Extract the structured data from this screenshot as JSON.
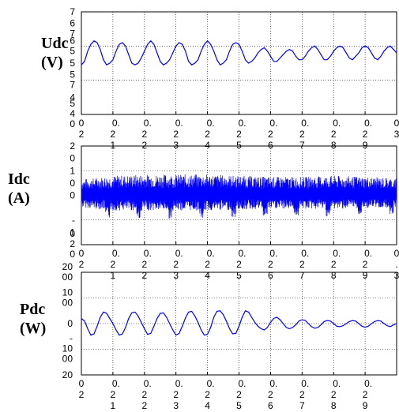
{
  "chart_data": [
    {
      "type": "line",
      "ylabel_lines": [
        "Udc",
        "(V)"
      ],
      "xlim": [
        0.2,
        0.3
      ],
      "ylim": [
        4,
        7
      ],
      "grid": true,
      "series_color": "#0000ff",
      "ytick_labels": [
        {
          "value": 7,
          "lines": [
            "7"
          ]
        },
        {
          "value": 6.5,
          "lines": [
            "6",
            "7"
          ]
        },
        {
          "value": 6,
          "lines": [
            "6",
            "5"
          ]
        },
        {
          "value": 5.5,
          "lines": [
            "5"
          ]
        },
        {
          "value": 5,
          "lines": [
            "5",
            "7"
          ]
        },
        {
          "value": 4.5,
          "lines": [
            "4"
          ]
        },
        {
          "value": 4,
          "lines": [
            "5",
            "4",
            "0"
          ]
        }
      ],
      "xtick_labels": [
        {
          "value": 0.2,
          "lines": [
            "0",
            "",
            "2"
          ]
        },
        {
          "value": 0.21,
          "lines": [
            "0.",
            "2",
            "1"
          ]
        },
        {
          "value": 0.22,
          "lines": [
            "0.",
            "2",
            "2"
          ]
        },
        {
          "value": 0.23,
          "lines": [
            "0.",
            "2",
            "3"
          ]
        },
        {
          "value": 0.24,
          "lines": [
            "0.",
            "2",
            "4"
          ]
        },
        {
          "value": 0.25,
          "lines": [
            "0.",
            "2",
            "5"
          ]
        },
        {
          "value": 0.26,
          "lines": [
            "0.",
            "2",
            "6"
          ]
        },
        {
          "value": 0.27,
          "lines": [
            "0.",
            "2",
            "7"
          ]
        },
        {
          "value": 0.28,
          "lines": [
            "0.",
            "2",
            "8"
          ]
        },
        {
          "value": 0.29,
          "lines": [
            "0.",
            "2",
            "9"
          ]
        },
        {
          "value": 0.3,
          "lines": [
            "0",
            "",
            "3"
          ]
        }
      ],
      "x": [
        0.2,
        0.201,
        0.202,
        0.203,
        0.204,
        0.205,
        0.206,
        0.207,
        0.208,
        0.209,
        0.21,
        0.211,
        0.212,
        0.213,
        0.214,
        0.215,
        0.216,
        0.217,
        0.218,
        0.219,
        0.22,
        0.221,
        0.222,
        0.223,
        0.224,
        0.225,
        0.226,
        0.227,
        0.228,
        0.229,
        0.23,
        0.231,
        0.232,
        0.233,
        0.234,
        0.235,
        0.236,
        0.237,
        0.238,
        0.239,
        0.24,
        0.241,
        0.242,
        0.243,
        0.244,
        0.245,
        0.246,
        0.247,
        0.248,
        0.249,
        0.25,
        0.251,
        0.252,
        0.253,
        0.254,
        0.255,
        0.256,
        0.257,
        0.258,
        0.259,
        0.26,
        0.261,
        0.262,
        0.263,
        0.264,
        0.265,
        0.266,
        0.267,
        0.268,
        0.269,
        0.27,
        0.271,
        0.272,
        0.273,
        0.274,
        0.275,
        0.276,
        0.277,
        0.278,
        0.279,
        0.28,
        0.281,
        0.282,
        0.283,
        0.284,
        0.285,
        0.286,
        0.287,
        0.288,
        0.289,
        0.29,
        0.291,
        0.292,
        0.293,
        0.294,
        0.295,
        0.296,
        0.297,
        0.298,
        0.299,
        0.3
      ],
      "y": [
        5.45,
        5.55,
        5.85,
        6.05,
        6.15,
        6.1,
        5.9,
        5.6,
        5.45,
        5.5,
        5.6,
        5.85,
        6.05,
        6.1,
        6.0,
        5.75,
        5.5,
        5.45,
        5.5,
        5.65,
        5.85,
        6.05,
        6.15,
        6.05,
        5.8,
        5.55,
        5.45,
        5.5,
        5.6,
        5.8,
        6.0,
        6.1,
        6.05,
        5.85,
        5.55,
        5.45,
        5.5,
        5.6,
        5.85,
        6.05,
        6.15,
        6.05,
        5.85,
        5.6,
        5.45,
        5.5,
        5.6,
        5.85,
        6.05,
        6.1,
        6.05,
        5.85,
        5.6,
        5.5,
        5.55,
        5.65,
        5.8,
        5.9,
        5.95,
        5.85,
        5.7,
        5.55,
        5.55,
        5.65,
        5.75,
        5.85,
        5.9,
        5.85,
        5.7,
        5.6,
        5.6,
        5.7,
        5.85,
        5.95,
        6.0,
        5.9,
        5.75,
        5.6,
        5.6,
        5.7,
        5.85,
        5.95,
        6.0,
        5.95,
        5.8,
        5.65,
        5.6,
        5.7,
        5.8,
        5.95,
        6.0,
        5.95,
        5.8,
        5.65,
        5.6,
        5.7,
        5.85,
        5.95,
        6.0,
        5.9,
        5.8
      ]
    },
    {
      "type": "line",
      "ylabel_lines": [
        "Idc",
        "(A)"
      ],
      "xlim": [
        0.2,
        0.3
      ],
      "ylim": [
        -20,
        20
      ],
      "grid": true,
      "series_color": "#0000ff",
      "ytick_labels": [
        {
          "value": 20,
          "lines": [
            "2"
          ]
        },
        {
          "value": 15,
          "lines": [
            "0"
          ]
        },
        {
          "value": 10,
          "lines": [
            "1"
          ]
        },
        {
          "value": 5,
          "lines": [
            "0"
          ]
        },
        {
          "value": 0,
          "lines": [
            "0"
          ]
        },
        {
          "value": -5,
          "lines": [
            ""
          ]
        },
        {
          "value": -10,
          "lines": [
            "-"
          ]
        },
        {
          "value": -15,
          "lines": [
            "1"
          ]
        },
        {
          "value": -20,
          "lines": [
            "0",
            "2",
            "0"
          ]
        }
      ],
      "xtick_labels": [
        {
          "value": 0.2,
          "lines": [
            "0",
            "",
            "2"
          ]
        },
        {
          "value": 0.21,
          "lines": [
            "0.",
            "2",
            "1"
          ]
        },
        {
          "value": 0.22,
          "lines": [
            "0.",
            "2",
            "2"
          ]
        },
        {
          "value": 0.23,
          "lines": [
            "0.",
            "2",
            "3"
          ]
        },
        {
          "value": 0.24,
          "lines": [
            "0.",
            "2",
            "4"
          ]
        },
        {
          "value": 0.25,
          "lines": [
            "0.",
            "2",
            "5"
          ]
        },
        {
          "value": 0.26,
          "lines": [
            "0.",
            "2",
            "6"
          ]
        },
        {
          "value": 0.27,
          "lines": [
            "0.",
            "2",
            "7"
          ]
        },
        {
          "value": 0.28,
          "lines": [
            "0.",
            "2",
            "8"
          ]
        },
        {
          "value": 0.29,
          "lines": [
            "0.",
            "2",
            "9"
          ]
        },
        {
          "value": 0.3,
          "lines": [
            "0",
            ".",
            "3"
          ]
        }
      ],
      "x": [
        0.2,
        0.21,
        0.22,
        0.23,
        0.24,
        0.25,
        0.26,
        0.27,
        0.28,
        0.29,
        0.3
      ],
      "y_envelope_upper": [
        6.5,
        8.0,
        8.5,
        8.5,
        8.5,
        8.0,
        7.5,
        7.5,
        8.0,
        7.5,
        7.0
      ],
      "y_envelope_lower": [
        -7.5,
        -9.5,
        -9.5,
        -9.5,
        -9.5,
        -9.0,
        -8.5,
        -8.5,
        -8.5,
        -8.0,
        -7.5
      ],
      "note_signal": "high-frequency ripple"
    },
    {
      "type": "line",
      "ylabel_lines": [
        "Pdc",
        "(W)"
      ],
      "xlim": [
        0.2,
        0.3
      ],
      "ylim": [
        -200,
        200
      ],
      "grid": true,
      "series_color": "#0000ff",
      "ytick_labels": [
        {
          "value": 200,
          "lines": [
            "20",
            "00"
          ]
        },
        {
          "value": 100,
          "lines": [
            "10",
            "00"
          ]
        },
        {
          "value": 0,
          "lines": [
            "0"
          ]
        },
        {
          "value": -100,
          "lines": [
            "-",
            "10",
            "00"
          ]
        },
        {
          "value": -200,
          "lines": [
            "20"
          ]
        }
      ],
      "xtick_labels": [
        {
          "value": 0.2,
          "lines": [
            "0",
            "",
            "2"
          ]
        },
        {
          "value": 0.21,
          "lines": [
            "0.",
            "2",
            "1"
          ]
        },
        {
          "value": 0.22,
          "lines": [
            "0.",
            "2",
            "2"
          ]
        },
        {
          "value": 0.23,
          "lines": [
            "0.",
            "2",
            "3"
          ]
        },
        {
          "value": 0.24,
          "lines": [
            "0.",
            "2",
            "4"
          ]
        },
        {
          "value": 0.25,
          "lines": [
            "0.",
            "2",
            "5"
          ]
        },
        {
          "value": 0.26,
          "lines": [
            "0.",
            "2",
            "6"
          ]
        },
        {
          "value": 0.27,
          "lines": [
            "0.",
            "2",
            "7"
          ]
        },
        {
          "value": 0.28,
          "lines": [
            "0.",
            "2",
            "8"
          ]
        },
        {
          "value": 0.29,
          "lines": [
            "0.",
            "2",
            "9"
          ]
        }
      ],
      "x": [
        0.2,
        0.201,
        0.202,
        0.203,
        0.204,
        0.205,
        0.206,
        0.207,
        0.208,
        0.209,
        0.21,
        0.211,
        0.212,
        0.213,
        0.214,
        0.215,
        0.216,
        0.217,
        0.218,
        0.219,
        0.22,
        0.221,
        0.222,
        0.223,
        0.224,
        0.225,
        0.226,
        0.227,
        0.228,
        0.229,
        0.23,
        0.231,
        0.232,
        0.233,
        0.234,
        0.235,
        0.236,
        0.237,
        0.238,
        0.239,
        0.24,
        0.241,
        0.242,
        0.243,
        0.244,
        0.245,
        0.246,
        0.247,
        0.248,
        0.249,
        0.25,
        0.251,
        0.252,
        0.253,
        0.254,
        0.255,
        0.256,
        0.257,
        0.258,
        0.259,
        0.26,
        0.261,
        0.262,
        0.263,
        0.264,
        0.265,
        0.266,
        0.267,
        0.268,
        0.269,
        0.27,
        0.271,
        0.272,
        0.273,
        0.274,
        0.275,
        0.276,
        0.277,
        0.278,
        0.279,
        0.28,
        0.281,
        0.282,
        0.283,
        0.284,
        0.285,
        0.286,
        0.287,
        0.288,
        0.289,
        0.29,
        0.291,
        0.292,
        0.293,
        0.294,
        0.295,
        0.296,
        0.297,
        0.298,
        0.299,
        0.3
      ],
      "y": [
        20,
        10,
        -20,
        -45,
        -40,
        -10,
        25,
        45,
        40,
        20,
        0,
        -25,
        -45,
        -40,
        -15,
        20,
        42,
        45,
        30,
        5,
        -20,
        -42,
        -38,
        -10,
        20,
        40,
        42,
        25,
        0,
        -25,
        -45,
        -38,
        -10,
        22,
        45,
        48,
        30,
        5,
        -25,
        -45,
        -42,
        -15,
        25,
        48,
        50,
        35,
        10,
        -20,
        -40,
        -38,
        -10,
        25,
        50,
        45,
        25,
        5,
        -10,
        -20,
        -25,
        -15,
        5,
        20,
        25,
        15,
        0,
        -15,
        -20,
        -15,
        -5,
        10,
        15,
        12,
        0,
        -12,
        -18,
        -15,
        -5,
        8,
        12,
        10,
        0,
        -10,
        -12,
        -8,
        0,
        8,
        12,
        10,
        0,
        -10,
        -14,
        -10,
        0,
        8,
        12,
        10,
        0,
        -8,
        -12,
        -5,
        0
      ]
    }
  ]
}
